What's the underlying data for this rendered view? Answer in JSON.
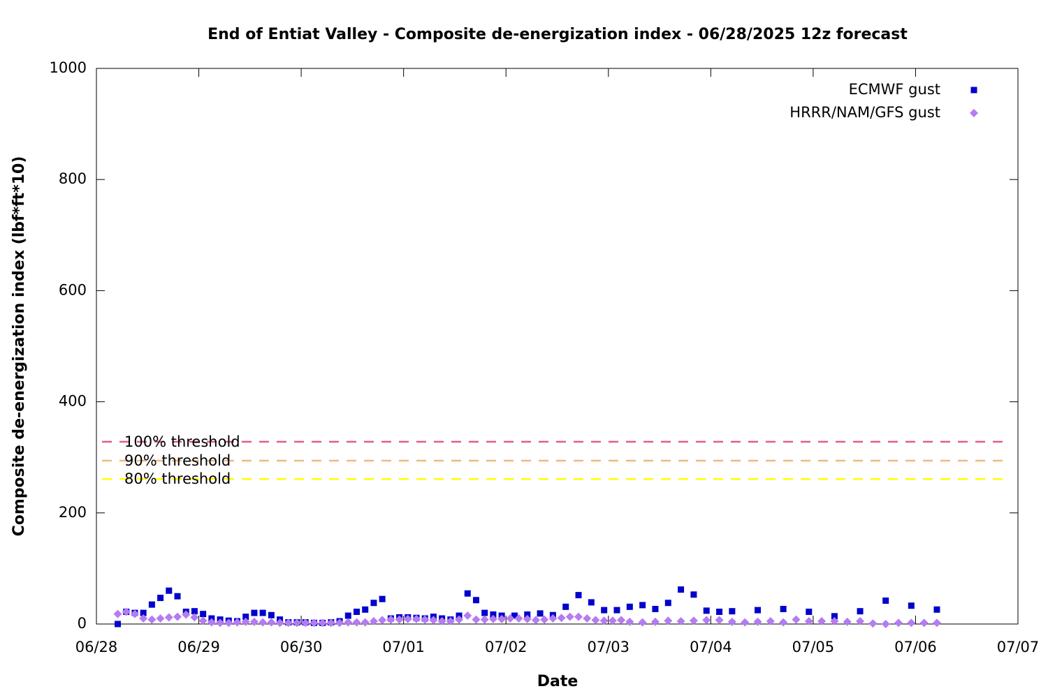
{
  "chart_data": {
    "type": "scatter",
    "title": "End of Entiat Valley - Composite de-energization index - 06/28/2025 12z forecast",
    "x_label": "Date",
    "y_label": "Composite de-energization index (lbf*ft*10)",
    "xlim": [
      "06/28",
      "07/07"
    ],
    "xticks": [
      "06/28",
      "06/29",
      "06/30",
      "07/01",
      "07/02",
      "07/03",
      "07/04",
      "07/05",
      "07/06",
      "07/07"
    ],
    "ylim": [
      0,
      1000
    ],
    "yticks": [
      0,
      200,
      400,
      600,
      800,
      1000
    ],
    "legend": "top-right",
    "thresholds": [
      {
        "label": "100% threshold",
        "value": 328,
        "color": "#e0607e"
      },
      {
        "label": "90% threshold",
        "value": 294,
        "color": "#f5b77a"
      },
      {
        "label": "80% threshold",
        "value": 261,
        "color": "#ffff00"
      }
    ],
    "series": [
      {
        "name": "ECMWF gust",
        "color": "#0000cc",
        "marker": "square",
        "x": [
          "06/28 05:00",
          "06/28 07:00",
          "06/28 09:00",
          "06/28 11:00",
          "06/28 13:00",
          "06/28 15:00",
          "06/28 17:00",
          "06/28 19:00",
          "06/28 21:00",
          "06/28 23:00",
          "06/29 01:00",
          "06/29 03:00",
          "06/29 05:00",
          "06/29 07:00",
          "06/29 09:00",
          "06/29 11:00",
          "06/29 13:00",
          "06/29 15:00",
          "06/29 17:00",
          "06/29 19:00",
          "06/29 21:00",
          "06/29 23:00",
          "06/30 01:00",
          "06/30 03:00",
          "06/30 05:00",
          "06/30 07:00",
          "06/30 09:00",
          "06/30 11:00",
          "06/30 13:00",
          "06/30 15:00",
          "06/30 17:00",
          "06/30 19:00",
          "06/30 21:00",
          "06/30 23:00",
          "07/01 01:00",
          "07/01 03:00",
          "07/01 05:00",
          "07/01 07:00",
          "07/01 09:00",
          "07/01 11:00",
          "07/01 13:00",
          "07/01 15:00",
          "07/01 17:00",
          "07/01 19:00",
          "07/01 21:00",
          "07/01 23:00",
          "07/02 02:00",
          "07/02 05:00",
          "07/02 08:00",
          "07/02 11:00",
          "07/02 14:00",
          "07/02 17:00",
          "07/02 20:00",
          "07/02 23:00",
          "07/03 02:00",
          "07/03 05:00",
          "07/03 08:00",
          "07/03 11:00",
          "07/03 14:00",
          "07/03 17:00",
          "07/03 20:00",
          "07/03 23:00",
          "07/04 02:00",
          "07/04 05:00",
          "07/04 11:00",
          "07/04 17:00",
          "07/04 23:00",
          "07/05 05:00",
          "07/05 11:00",
          "07/05 17:00",
          "07/05 23:00",
          "07/06 05:00"
        ],
        "values": [
          0,
          22,
          20,
          20,
          35,
          47,
          60,
          50,
          22,
          23,
          18,
          10,
          8,
          6,
          5,
          13,
          20,
          20,
          16,
          8,
          3,
          3,
          3,
          2,
          2,
          3,
          5,
          15,
          22,
          26,
          38,
          45,
          10,
          12,
          12,
          11,
          10,
          13,
          10,
          8,
          15,
          55,
          43,
          20,
          17,
          15,
          15,
          17,
          19,
          16,
          31,
          52,
          39,
          25,
          25,
          31,
          34,
          27,
          38,
          62,
          53,
          24,
          22,
          23,
          25,
          27,
          22,
          14,
          23,
          42,
          33,
          26
        ]
      },
      {
        "name": "HRRR/NAM/GFS gust",
        "color": "#b57cf2",
        "marker": "diamond",
        "x": [
          "06/28 05:00",
          "06/28 07:00",
          "06/28 09:00",
          "06/28 11:00",
          "06/28 13:00",
          "06/28 15:00",
          "06/28 17:00",
          "06/28 19:00",
          "06/28 21:00",
          "06/28 23:00",
          "06/29 01:00",
          "06/29 03:00",
          "06/29 05:00",
          "06/29 07:00",
          "06/29 09:00",
          "06/29 11:00",
          "06/29 13:00",
          "06/29 15:00",
          "06/29 17:00",
          "06/29 19:00",
          "06/29 21:00",
          "06/29 23:00",
          "06/30 01:00",
          "06/30 03:00",
          "06/30 05:00",
          "06/30 07:00",
          "06/30 09:00",
          "06/30 11:00",
          "06/30 13:00",
          "06/30 15:00",
          "06/30 17:00",
          "06/30 19:00",
          "06/30 21:00",
          "06/30 23:00",
          "07/01 01:00",
          "07/01 03:00",
          "07/01 05:00",
          "07/01 07:00",
          "07/01 09:00",
          "07/01 11:00",
          "07/01 13:00",
          "07/01 15:00",
          "07/01 17:00",
          "07/01 19:00",
          "07/01 21:00",
          "07/01 23:00",
          "07/02 01:00",
          "07/02 03:00",
          "07/02 05:00",
          "07/02 07:00",
          "07/02 09:00",
          "07/02 11:00",
          "07/02 13:00",
          "07/02 15:00",
          "07/02 17:00",
          "07/02 19:00",
          "07/02 21:00",
          "07/02 23:00",
          "07/03 01:00",
          "07/03 03:00",
          "07/03 05:00",
          "07/03 08:00",
          "07/03 11:00",
          "07/03 14:00",
          "07/03 17:00",
          "07/03 20:00",
          "07/03 23:00",
          "07/04 02:00",
          "07/04 05:00",
          "07/04 08:00",
          "07/04 11:00",
          "07/04 14:00",
          "07/04 17:00",
          "07/04 20:00",
          "07/04 23:00",
          "07/05 02:00",
          "07/05 05:00",
          "07/05 08:00",
          "07/05 11:00",
          "07/05 14:00",
          "07/05 17:00",
          "07/05 20:00",
          "07/05 23:00",
          "07/06 02:00",
          "07/06 05:00"
        ],
        "values": [
          18,
          22,
          18,
          10,
          8,
          10,
          12,
          13,
          17,
          12,
          6,
          3,
          2,
          2,
          3,
          4,
          4,
          3,
          3,
          2,
          2,
          2,
          2,
          2,
          2,
          2,
          2,
          3,
          3,
          3,
          5,
          7,
          8,
          8,
          9,
          9,
          8,
          7,
          5,
          5,
          8,
          15,
          8,
          8,
          9,
          9,
          10,
          10,
          9,
          7,
          8,
          10,
          11,
          13,
          13,
          10,
          7,
          6,
          6,
          7,
          4,
          3,
          4,
          6,
          5,
          6,
          7,
          7,
          4,
          3,
          4,
          5,
          3,
          8,
          5,
          5,
          5,
          4,
          5,
          1,
          0,
          2,
          2,
          2,
          2
        ]
      }
    ]
  }
}
